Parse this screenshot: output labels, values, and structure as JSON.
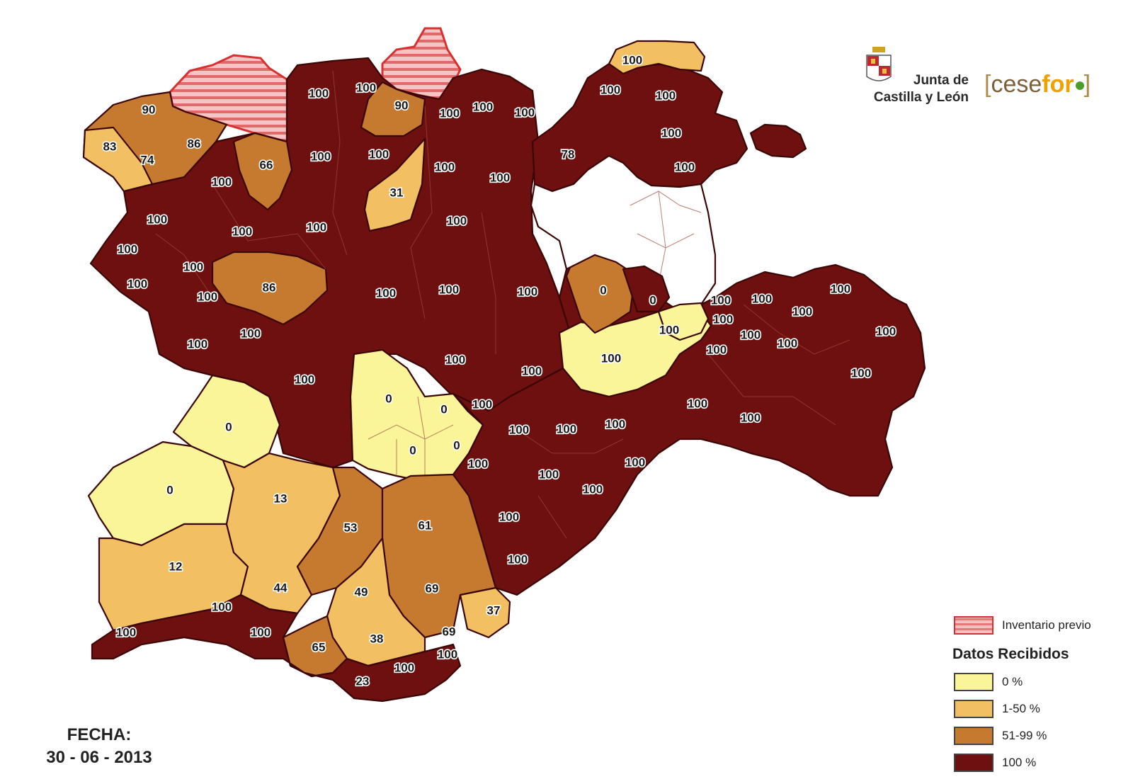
{
  "map": {
    "colors": {
      "level_0": "#fbf59a",
      "level_1_50": "#f2bf62",
      "level_51_99": "#c57a30",
      "level_100": "#6e1010",
      "no_data": "#ffffff",
      "inventario_previo": "#f4c0c0"
    },
    "region_values": [
      "90",
      "83",
      "74",
      "86",
      "66",
      "100",
      "100",
      "100",
      "100",
      "100",
      "90",
      "100",
      "100",
      "100",
      "100",
      "31",
      "100",
      "100",
      "100",
      "100",
      "100",
      "100",
      "100",
      "86",
      "100",
      "100",
      "100",
      "100",
      "100",
      "100",
      "100",
      "100",
      "0",
      "0",
      "0",
      "0",
      "0",
      "0",
      "13",
      "53",
      "61",
      "12",
      "44",
      "49",
      "69",
      "37",
      "65",
      "38",
      "69",
      "100",
      "100",
      "100",
      "100",
      "100",
      "100",
      "100",
      "100",
      "100",
      "100",
      "100",
      "100",
      "100",
      "100",
      "100",
      "100",
      "23",
      "100",
      "100",
      "100",
      "100",
      "100",
      "78",
      "100",
      "0",
      "0",
      "100",
      "100",
      "100",
      "100",
      "100",
      "100",
      "100",
      "100",
      "100",
      "100",
      "100",
      "100",
      "100",
      "100"
    ]
  },
  "legend": {
    "inventario_previo": "Inventario previo",
    "title": "Datos Recibidos",
    "items": [
      {
        "label": "0 %",
        "color": "#fbf59a"
      },
      {
        "label": "1-50 %",
        "color": "#f2bf62"
      },
      {
        "label": "51-99 %",
        "color": "#c57a30"
      },
      {
        "label": "100 %",
        "color": "#6e1010"
      }
    ]
  },
  "footer": {
    "fecha_label": "FECHA:",
    "fecha_value": "30 - 06 - 2013"
  },
  "logos": {
    "jcyl_line1": "Junta de",
    "jcyl_line2": "Castilla y León",
    "cesefor_a": "cese",
    "cesefor_b": "for"
  },
  "icons": {
    "jcyl_logo": "coat-of-arms-icon",
    "cesefor_logo": "cesefor-wordmark-icon"
  }
}
